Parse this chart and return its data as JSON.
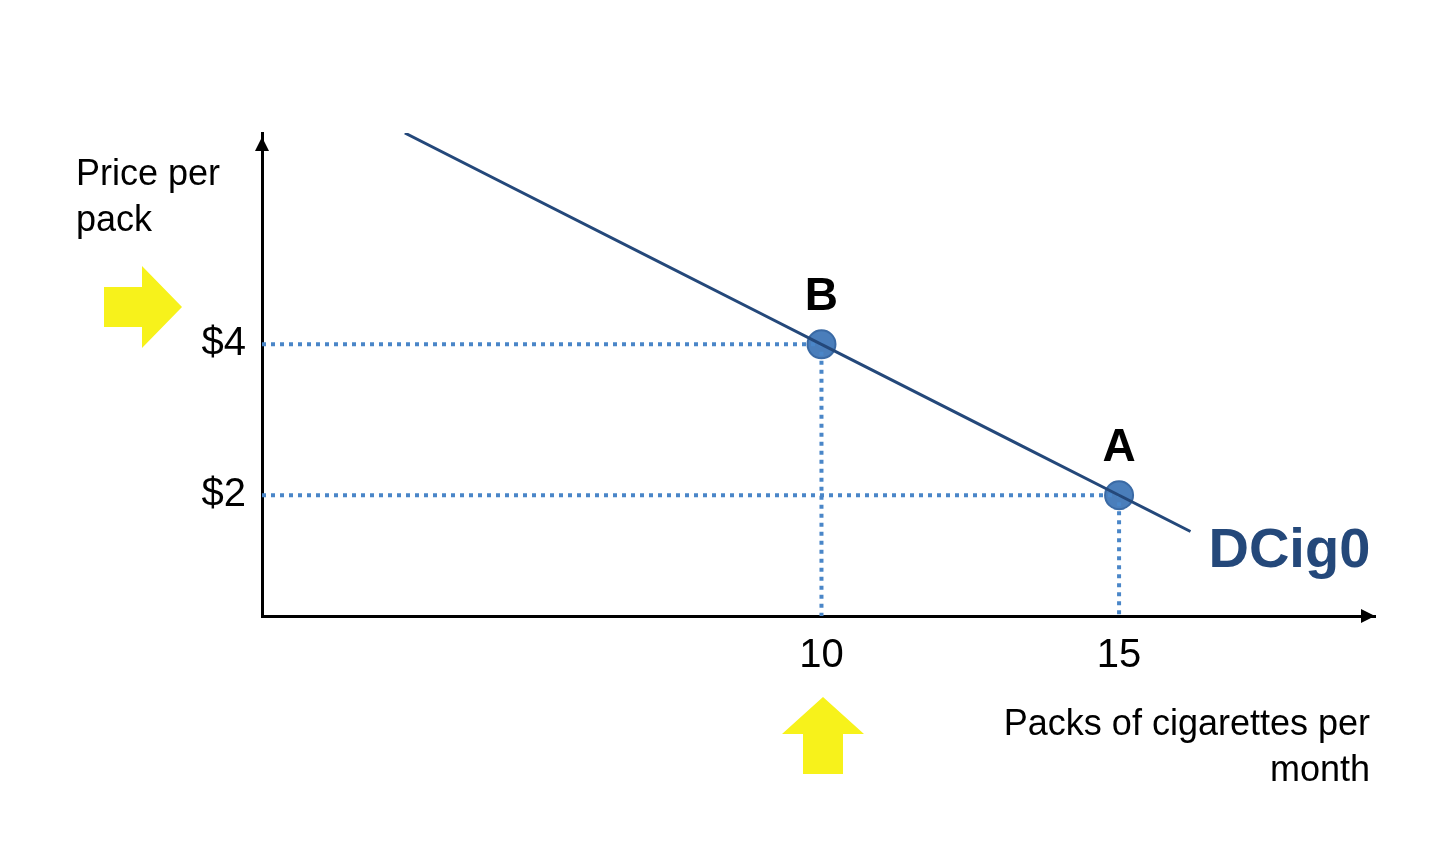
{
  "chart_data": {
    "type": "line",
    "xlabel": "Packs of cigarettes per month",
    "ylabel": "Price per pack",
    "xlim": [
      0.6,
      19.3
    ],
    "ylim": [
      0.4,
      6.8
    ],
    "xticks": [
      10,
      15
    ],
    "yticks": [
      {
        "value": 2,
        "label": "$2"
      },
      {
        "value": 4,
        "label": "$4"
      }
    ],
    "grid": false,
    "legend": false,
    "series": [
      {
        "name": "DCig0",
        "color": "#24487a",
        "marker": "none",
        "line_style": "solid",
        "x": [
          3,
          10,
          15,
          16.2
        ],
        "values": [
          6.8,
          4,
          2,
          1.52
        ]
      },
      {
        "color": "#4a86c8",
        "marker": "none",
        "line_style": "dotted",
        "x": [
          0.6,
          10,
          10
        ],
        "values": [
          4,
          4,
          0.4
        ]
      },
      {
        "color": "#4a86c8",
        "marker": "none",
        "line_style": "dotted",
        "x": [
          0.6,
          15,
          15
        ],
        "values": [
          2,
          2,
          0.4
        ]
      },
      {
        "type": "scatter",
        "color": "#4a7ebb",
        "marker": "circle",
        "x": [
          10,
          15
        ],
        "values": [
          4,
          2
        ]
      }
    ],
    "annotations": [
      {
        "text": "B",
        "x": 10,
        "y": 4
      },
      {
        "text": "A",
        "x": 15,
        "y": 2
      }
    ]
  }
}
